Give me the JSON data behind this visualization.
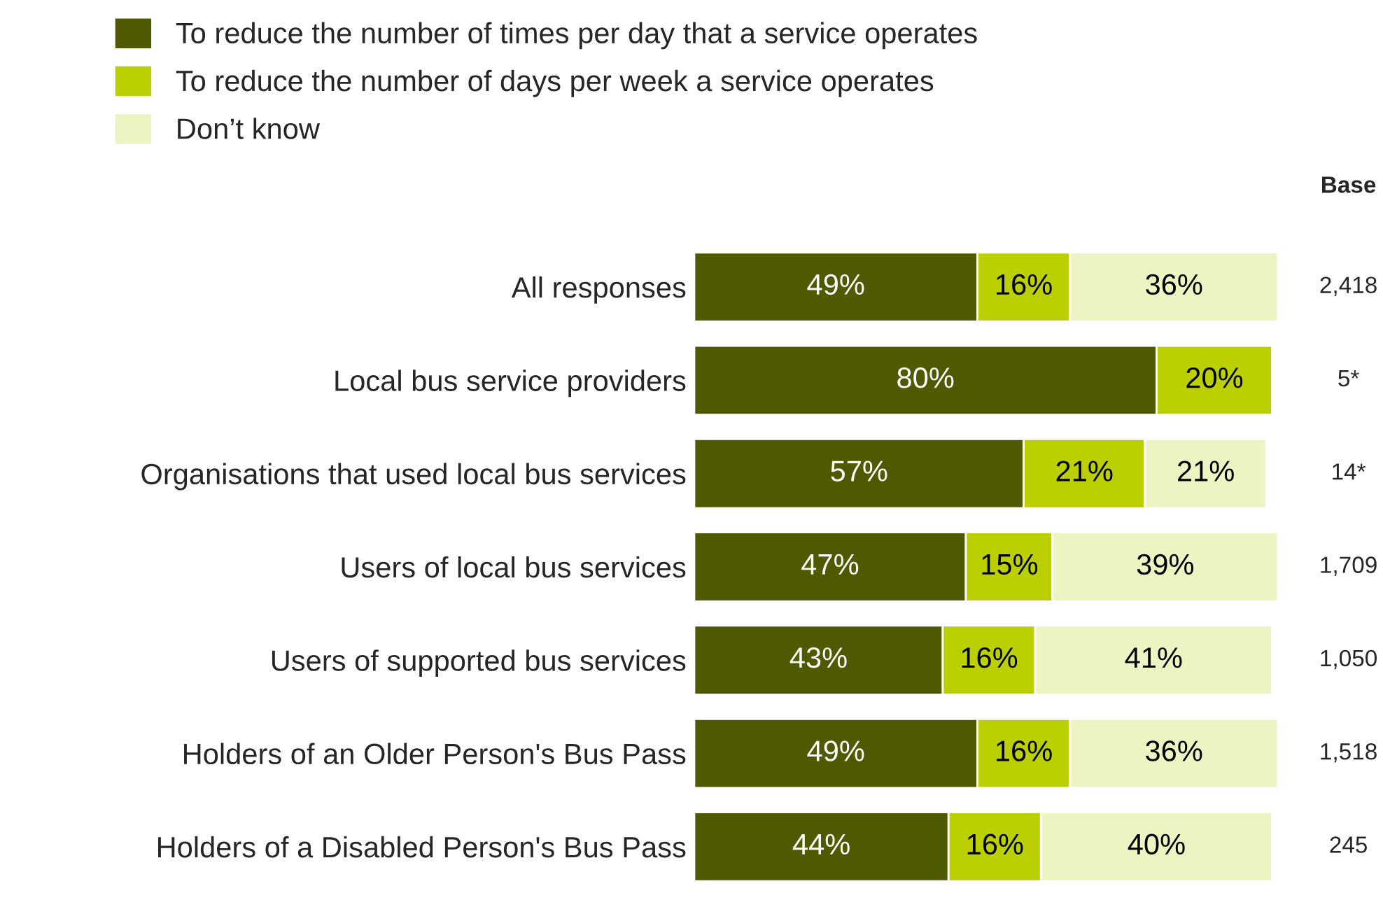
{
  "chart_data": {
    "type": "bar",
    "orientation": "horizontal",
    "stacked": true,
    "legend": "top left",
    "grid": false,
    "categories": [
      "All responses",
      "Local bus service providers",
      "Organisations that used local bus services",
      "Users of local bus services",
      "Users of supported bus services",
      "Holders of an Older Person's Bus Pass",
      "Holders of a Disabled Person's Bus Pass"
    ],
    "series": [
      {
        "name": "To reduce the number of times per day that a service operates",
        "color": "#4f5a00",
        "values": [
          49,
          80,
          57,
          47,
          43,
          49,
          44
        ],
        "value_labels": [
          "49%",
          "80%",
          "57%",
          "47%",
          "43%",
          "49%",
          "44%"
        ]
      },
      {
        "name": "To reduce the number of days per week a service operates",
        "color": "#bccf00",
        "values": [
          16,
          20,
          21,
          15,
          16,
          16,
          16
        ],
        "value_labels": [
          "16%",
          "20%",
          "21%",
          "15%",
          "16%",
          "16%",
          "16%"
        ]
      },
      {
        "name": "Don’t know",
        "color": "#eef3c2",
        "values": [
          36,
          null,
          21,
          39,
          41,
          36,
          40
        ],
        "value_labels": [
          "36%",
          null,
          "21%",
          "39%",
          "41%",
          "36%",
          "40%"
        ]
      }
    ],
    "annotations": [
      "Base",
      "2,418",
      "5*",
      "14*",
      "1,709",
      "1,050",
      "1,518",
      "245"
    ]
  }
}
